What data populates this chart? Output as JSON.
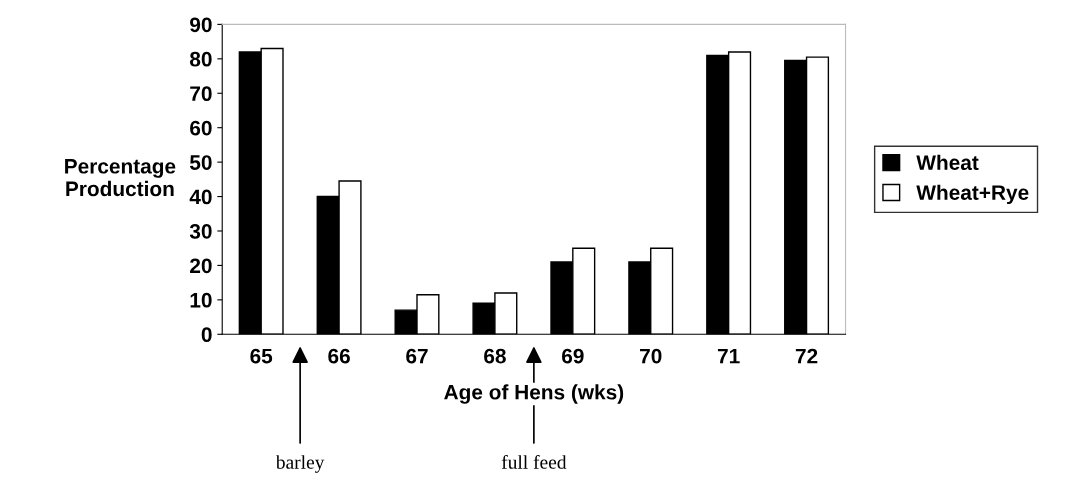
{
  "chart_data": {
    "type": "bar",
    "xlabel": "Age of Hens (wks)",
    "ylabel": "Percentage\nProduction",
    "categories": [
      "65",
      "66",
      "67",
      "68",
      "69",
      "70",
      "71",
      "72"
    ],
    "series": [
      {
        "name": "Wheat",
        "color": "#000000",
        "values": [
          82,
          40,
          7,
          9,
          21,
          21,
          81,
          79.5
        ]
      },
      {
        "name": "Wheat+Rye",
        "color": "#ffffff",
        "values": [
          83,
          44.5,
          11.5,
          12,
          25,
          25,
          82,
          80.5
        ]
      }
    ],
    "ylim": [
      0,
      90
    ],
    "yticks": [
      0,
      10,
      20,
      30,
      40,
      50,
      60,
      70,
      80,
      90
    ],
    "grid": false,
    "legend": "right",
    "annotations": [
      "barley",
      "full feed"
    ]
  }
}
